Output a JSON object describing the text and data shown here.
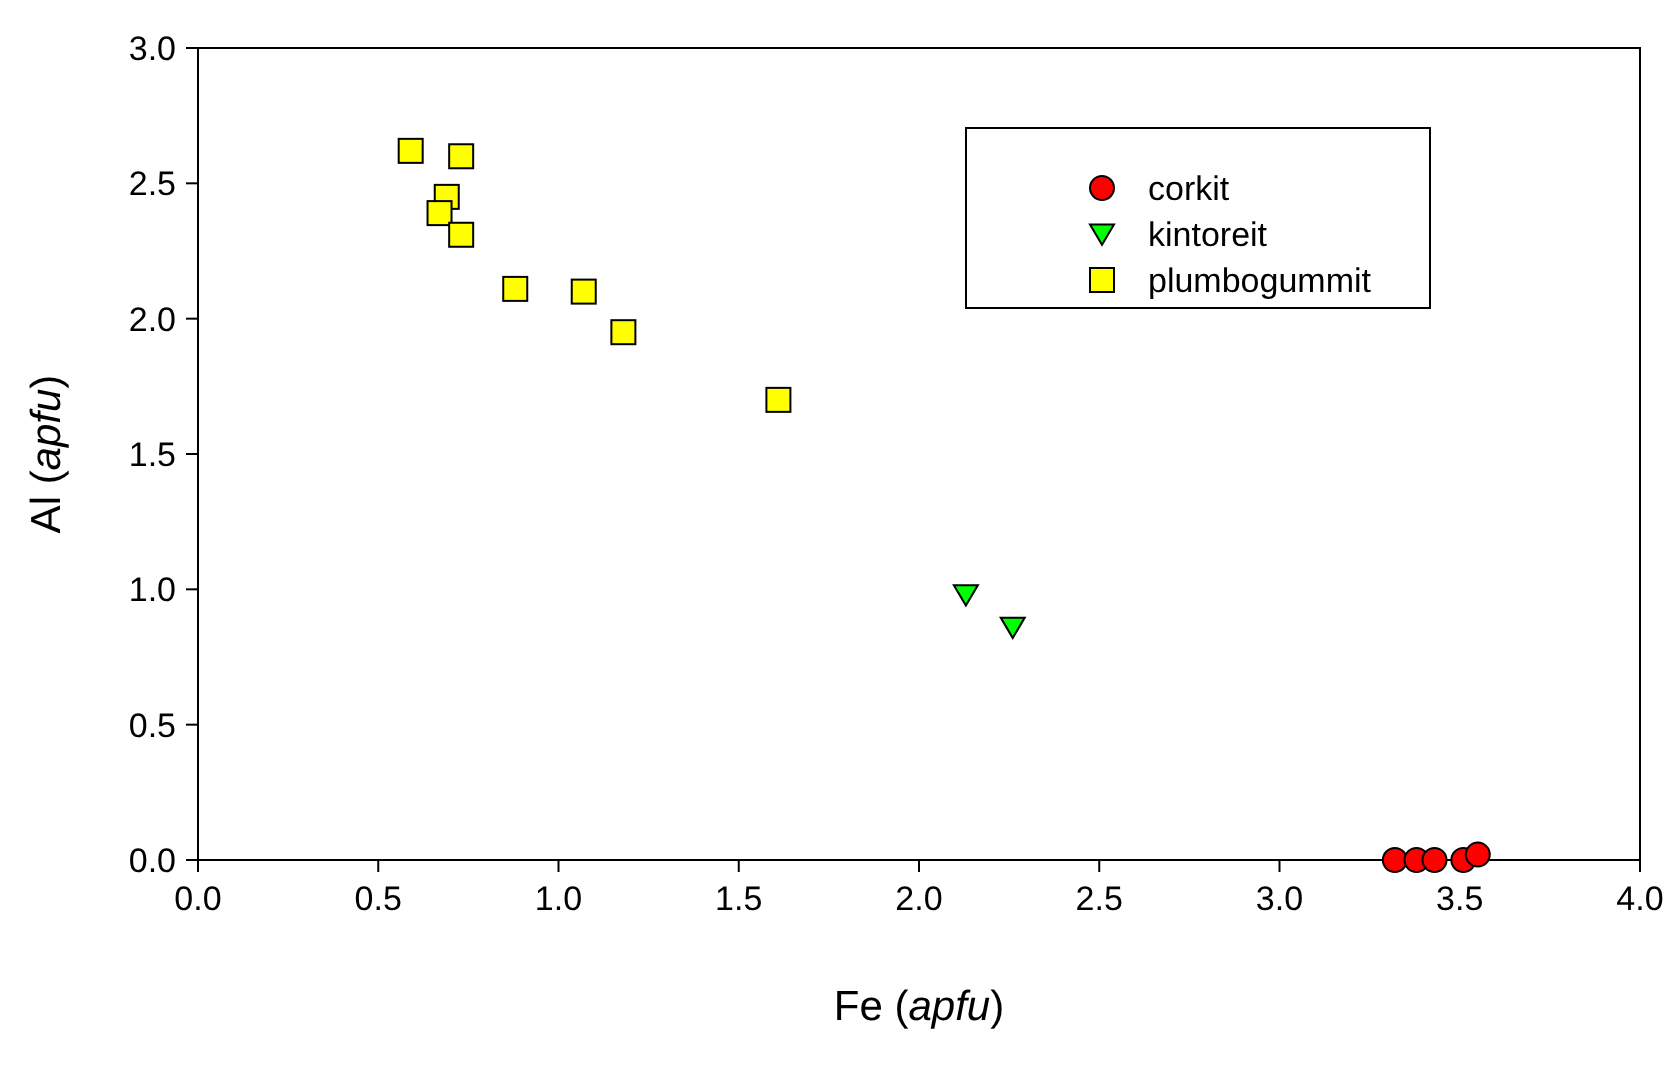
{
  "chart_data": {
    "type": "scatter",
    "xlabel": "Fe (apfu)",
    "ylabel": "Al (apfu)",
    "xlim": [
      0,
      4
    ],
    "ylim": [
      0,
      3
    ],
    "xticks": [
      {
        "value": 0,
        "label": "0.0"
      },
      {
        "value": 0.5,
        "label": "0.5"
      },
      {
        "value": 1,
        "label": "1.0"
      },
      {
        "value": 1.5,
        "label": "1.5"
      },
      {
        "value": 2,
        "label": "2.0"
      },
      {
        "value": 2.5,
        "label": "2.5"
      },
      {
        "value": 3,
        "label": "3.0"
      },
      {
        "value": 3.5,
        "label": "3.5"
      },
      {
        "value": 4,
        "label": "4.0"
      }
    ],
    "yticks": [
      {
        "value": 0,
        "label": "0.0"
      },
      {
        "value": 0.5,
        "label": "0.5"
      },
      {
        "value": 1,
        "label": "1.0"
      },
      {
        "value": 1.5,
        "label": "1.5"
      },
      {
        "value": 2,
        "label": "2.0"
      },
      {
        "value": 2.5,
        "label": "2.5"
      },
      {
        "value": 3,
        "label": "3.0"
      }
    ],
    "grid": false,
    "legend": "top right",
    "series": [
      {
        "name": "corkit",
        "color": "#ff0000",
        "marker": "circle",
        "x": [
          3.32,
          3.38,
          3.43,
          3.51,
          3.55
        ],
        "values": [
          0,
          0,
          0,
          0,
          0.02
        ]
      },
      {
        "name": "kintoreit",
        "color": "#00ff00",
        "marker": "triangle",
        "x": [
          2.13,
          2.26
        ],
        "values": [
          0.98,
          0.86
        ]
      },
      {
        "name": "plumbogummit",
        "color": "#ffff00",
        "marker": "square",
        "x": [
          0.59,
          0.73,
          0.69,
          0.67,
          0.73,
          0.88,
          1.07,
          1.18,
          1.61
        ],
        "values": [
          2.62,
          2.6,
          2.45,
          2.39,
          2.31,
          2.11,
          2.1,
          1.95,
          1.7
        ]
      }
    ]
  }
}
